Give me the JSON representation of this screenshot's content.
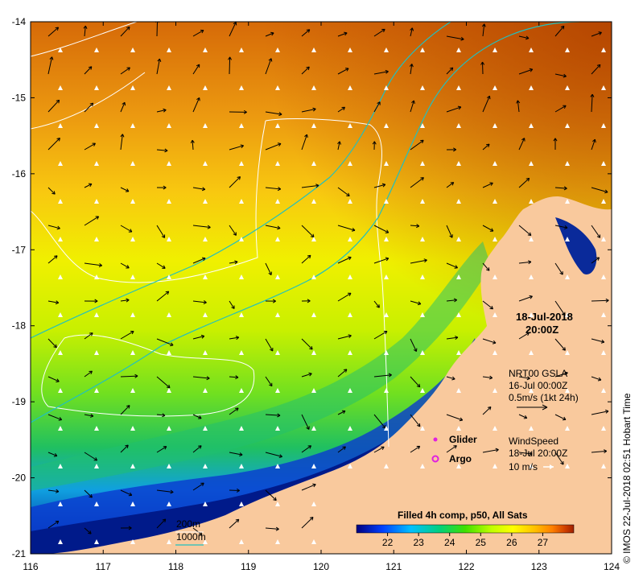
{
  "map": {
    "lon_ticks": [
      "116",
      "117",
      "118",
      "119",
      "120",
      "121",
      "122",
      "123",
      "124"
    ],
    "lat_ticks": [
      "-14",
      "-15",
      "-16",
      "-17",
      "-18",
      "-19",
      "-20",
      "-21"
    ],
    "lon_range": [
      116,
      124
    ],
    "lat_range": [
      -14,
      -21
    ]
  },
  "datetime": {
    "date": "18-Jul-2018",
    "time": "20:00Z"
  },
  "gsla": {
    "product": "NRT00 GSLA",
    "date": "16-Jul 00:00Z",
    "scale": "0.5m/s (1kt 24h)"
  },
  "legend_markers": {
    "glider": "Glider",
    "argo": "Argo",
    "glider_color": "#e020e0",
    "argo_color": "#e020e0"
  },
  "wind": {
    "label": "WindSpeed",
    "date": "18-Jul 20:00Z",
    "scale": "10 m/s"
  },
  "colorbar": {
    "title": "Filled 4h comp, p50, All Sats",
    "ticks": [
      "22",
      "23",
      "24",
      "25",
      "26",
      "27"
    ],
    "range": [
      21,
      28
    ],
    "colors": [
      "#00007f",
      "#0040ff",
      "#00c0ff",
      "#00d080",
      "#40e000",
      "#c0ff00",
      "#ffff00",
      "#ffc000",
      "#ff8000",
      "#d04000",
      "#a02000"
    ]
  },
  "contours": {
    "iso200": "200m",
    "iso1000": "1000m",
    "color200": "#ffffff",
    "color1000": "#20c0c0"
  },
  "credit": "© IMOS 22-Jul-2018 02:51 Hobart Time",
  "colors": {
    "land": "#f9c99d",
    "warm": "#e07810",
    "cool": "#00208f"
  }
}
